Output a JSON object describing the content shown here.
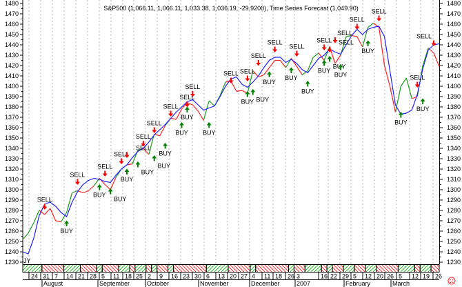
{
  "title": "S&P500 (1,066.11, 1,066.11, 1,033.38, 1,036.19, -29.9200), Time Series Forecast (1,049.90)",
  "corner_label": "JY",
  "status_icon": "sad-face-icon",
  "colors": {
    "price_up": "#1a9a1a",
    "price_down": "#ff2020",
    "forecast": "#2020ff",
    "buy": "#008000",
    "sell": "#ff0000",
    "grid": "#b0b0b0",
    "status_icon": "#ff3030"
  },
  "chart_data": {
    "type": "line",
    "title": "S&P500 (1,066.11, 1,066.11, 1,033.38, 1,036.19, -29.9200), Time Series Forecast (1,049.90)",
    "ylim": [
      1230,
      1480
    ],
    "y_ticks": [
      "1230",
      "1240",
      "1250",
      "1260",
      "1270",
      "1280",
      "1290",
      "1300",
      "1310",
      "1320",
      "1330",
      "1340",
      "1350",
      "1360",
      "1370",
      "1380",
      "1390",
      "1400",
      "1410",
      "1420",
      "1430",
      "1440",
      "1450",
      "1460",
      "1470",
      "1480"
    ],
    "grid": "vertical dashed at week ticks",
    "x_week_labels": [
      "24",
      "31",
      "7",
      "14",
      "21",
      "28",
      "5",
      "11",
      "18",
      "25",
      "2",
      "9",
      "16",
      "23",
      "30",
      "6",
      "13",
      "20",
      "27",
      "4",
      "11",
      "18",
      "26",
      "3",
      "16",
      "22",
      "29",
      "5",
      "12",
      "20",
      "26",
      "5",
      "12",
      "19",
      "26"
    ],
    "x_month_labels": [
      "August",
      "September",
      "October",
      "November",
      "December",
      "2007",
      "February",
      "March"
    ],
    "series": [
      {
        "name": "S&P500",
        "values": [
          1252,
          1258,
          1268,
          1280,
          1276,
          1282,
          1270,
          1269,
          1278,
          1297,
          1299,
          1297,
          1299,
          1304,
          1311,
          1305,
          1300,
          1312,
          1320,
          1324,
          1325,
          1338,
          1340,
          1334,
          1354,
          1352,
          1362,
          1369,
          1368,
          1378,
          1384,
          1382,
          1376,
          1367,
          1386,
          1381,
          1391,
          1404,
          1405,
          1395,
          1396,
          1393,
          1415,
          1409,
          1411,
          1418,
          1425,
          1425,
          1418,
          1427,
          1419,
          1411,
          1415,
          1428,
          1432,
          1425,
          1438,
          1422,
          1430,
          1448,
          1449,
          1448,
          1438,
          1457,
          1461,
          1457,
          1420,
          1400,
          1375,
          1400,
          1408,
          1388,
          1390,
          1420,
          1437,
          1432,
          1419
        ]
      },
      {
        "name": "Time Series Forecast",
        "values": [
          1240,
          1238,
          1253,
          1275,
          1286,
          1288,
          1284,
          1278,
          1274,
          1288,
          1298,
          1305,
          1309,
          1311,
          1310,
          1308,
          1307,
          1314,
          1320,
          1324,
          1331,
          1337,
          1340,
          1346,
          1353,
          1358,
          1363,
          1369,
          1375,
          1380,
          1385,
          1387,
          1382,
          1377,
          1379,
          1381,
          1390,
          1400,
          1407,
          1409,
          1402,
          1399,
          1404,
          1410,
          1418,
          1425,
          1428,
          1428,
          1423,
          1426,
          1422,
          1416,
          1413,
          1420,
          1427,
          1430,
          1436,
          1433,
          1431,
          1440,
          1449,
          1455,
          1450,
          1455,
          1457,
          1458,
          1448,
          1415,
          1382,
          1373,
          1374,
          1377,
          1392,
          1417,
          1435,
          1440,
          1441
        ]
      }
    ],
    "signals": [
      {
        "type": "SELL",
        "point": 4,
        "level": 1283
      },
      {
        "type": "SELL",
        "point": 10,
        "level": 1307
      },
      {
        "type": "SELL",
        "point": 15,
        "level": 1315
      },
      {
        "type": "SELL",
        "point": 18,
        "level": 1327
      },
      {
        "type": "SELL",
        "point": 19,
        "level": 1333
      },
      {
        "type": "SELL",
        "point": 22,
        "level": 1344
      },
      {
        "type": "SELL",
        "point": 24,
        "level": 1357
      },
      {
        "type": "SELL",
        "point": 27,
        "level": 1373
      },
      {
        "type": "SELL",
        "point": 30,
        "level": 1382
      },
      {
        "type": "SELL",
        "point": 31,
        "level": 1392
      },
      {
        "type": "SELL",
        "point": 38,
        "level": 1405
      },
      {
        "type": "SELL",
        "point": 41,
        "level": 1407
      },
      {
        "type": "SELL",
        "point": 43,
        "level": 1422
      },
      {
        "type": "SELL",
        "point": 46,
        "level": 1435
      },
      {
        "type": "SELL",
        "point": 50,
        "level": 1431
      },
      {
        "type": "SELL",
        "point": 55,
        "level": 1437
      },
      {
        "type": "SELL",
        "point": 56,
        "level": 1435
      },
      {
        "type": "SELL",
        "point": 57,
        "level": 1444
      },
      {
        "type": "SELL",
        "point": 61,
        "level": 1457
      },
      {
        "type": "SELL",
        "point": 65,
        "level": 1465
      },
      {
        "type": "SELL",
        "point": 72,
        "level": 1401
      },
      {
        "type": "SELL",
        "point": 75,
        "level": 1441
      },
      {
        "type": "BUY",
        "point": 8,
        "level": 1268
      },
      {
        "type": "BUY",
        "point": 14,
        "level": 1303
      },
      {
        "type": "BUY",
        "point": 16,
        "level": 1299
      },
      {
        "type": "BUY",
        "point": 19,
        "level": 1318
      },
      {
        "type": "BUY",
        "point": 21,
        "level": 1325
      },
      {
        "type": "BUY",
        "point": 24,
        "level": 1331
      },
      {
        "type": "BUY",
        "point": 26,
        "level": 1343
      },
      {
        "type": "BUY",
        "point": 29,
        "level": 1363
      },
      {
        "type": "BUY",
        "point": 30,
        "level": 1378
      },
      {
        "type": "BUY",
        "point": 34,
        "level": 1363
      },
      {
        "type": "BUY",
        "point": 41,
        "level": 1393
      },
      {
        "type": "BUY",
        "point": 42,
        "level": 1395
      },
      {
        "type": "BUY",
        "point": 45,
        "level": 1412
      },
      {
        "type": "BUY",
        "point": 49,
        "level": 1416
      },
      {
        "type": "BUY",
        "point": 52,
        "level": 1403
      },
      {
        "type": "BUY",
        "point": 55,
        "level": 1423
      },
      {
        "type": "BUY",
        "point": 56,
        "level": 1427
      },
      {
        "type": "BUY",
        "point": 58,
        "level": 1419
      },
      {
        "type": "BUY",
        "point": 63,
        "level": 1442
      },
      {
        "type": "BUY",
        "point": 69,
        "level": 1373
      },
      {
        "type": "BUY",
        "point": 73,
        "level": 1386
      }
    ]
  }
}
